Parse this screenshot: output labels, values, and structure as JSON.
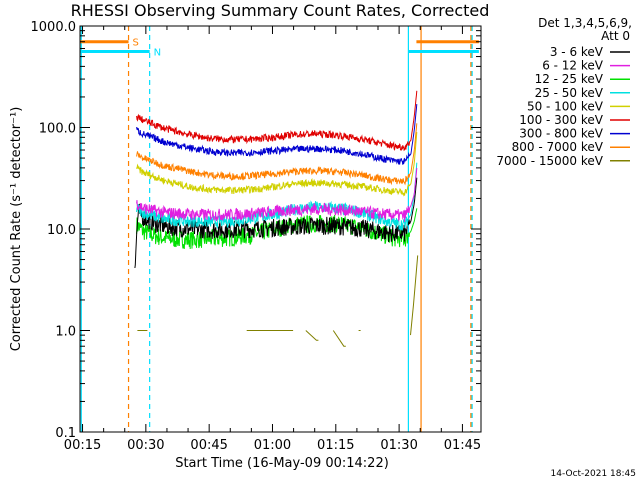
{
  "chart_data": {
    "type": "line",
    "title": "RHESSI Observing Summary Count Rates, Corrected",
    "xlabel": "Start Time (16-May-09 00:14:22)",
    "ylabel": "Corrected Count Rate (s⁻¹ detector⁻¹)",
    "x_unit": "minutes after 00:14:22",
    "xlim": [
      0,
      95
    ],
    "ylim": [
      0.1,
      1000
    ],
    "yscale": "log",
    "x_ticks": [
      {
        "t": 0.6,
        "label": "00:15"
      },
      {
        "t": 15.6,
        "label": "00:30"
      },
      {
        "t": 30.6,
        "label": "00:45"
      },
      {
        "t": 45.6,
        "label": "01:00"
      },
      {
        "t": 60.6,
        "label": "01:15"
      },
      {
        "t": 75.6,
        "label": "01:30"
      },
      {
        "t": 90.6,
        "label": "01:45"
      }
    ],
    "y_ticks": [
      {
        "v": 0.1,
        "label": "0.1"
      },
      {
        "v": 1,
        "label": "1.0"
      },
      {
        "v": 10,
        "label": "10.0"
      },
      {
        "v": 100,
        "label": "100.0"
      },
      {
        "v": 1000,
        "label": "1000.0"
      }
    ],
    "legend": {
      "header1": "Det 1,3,4,5,6,9,",
      "header2": "Att 0",
      "placement": "right"
    },
    "series": [
      {
        "name": "3 - 6 keV",
        "color": "#000000",
        "x": [
          13,
          13.8,
          15,
          18,
          21,
          26,
          31,
          36,
          41,
          46,
          51,
          56,
          61,
          66,
          70,
          74,
          77,
          78.4,
          79.2,
          79.8
        ],
        "y": [
          4.5,
          15,
          13,
          11.2,
          10.5,
          10,
          9.8,
          9.9,
          10,
          10.3,
          10.6,
          10.8,
          10.7,
          10.2,
          9.6,
          9.0,
          9.0,
          12,
          18,
          32
        ]
      },
      {
        "name": "6 - 12 keV",
        "color": "#e020e0",
        "x": [
          13.4,
          15,
          20,
          26,
          31,
          36,
          41,
          46,
          51,
          56,
          61,
          66,
          70,
          74,
          77,
          78.4,
          79.2,
          79.8
        ],
        "y": [
          18,
          16,
          14.5,
          14,
          13.8,
          13.9,
          14.2,
          14.8,
          15.5,
          15.8,
          15.5,
          15,
          14.2,
          13.8,
          13.5,
          17,
          22,
          40
        ]
      },
      {
        "name": "12 - 25 keV",
        "color": "#00e000",
        "x": [
          13.4,
          15,
          18,
          21,
          26,
          31,
          36,
          41,
          46,
          51,
          56,
          61,
          66,
          70,
          74,
          77,
          78.4,
          79.2,
          79.8
        ],
        "y": [
          11,
          9.5,
          8.5,
          8,
          7.8,
          8,
          8.2,
          8.8,
          10,
          11,
          11.3,
          11.2,
          10.4,
          9.3,
          8.2,
          8.0,
          9.5,
          12,
          16
        ]
      },
      {
        "name": "25 - 50 keV",
        "color": "#00e0e0",
        "x": [
          13.4,
          15,
          20,
          26,
          31,
          36,
          41,
          46,
          51,
          56,
          61,
          66,
          70,
          74,
          77,
          78.4,
          79.2,
          79.8
        ],
        "y": [
          16,
          14.5,
          12.5,
          12,
          11.8,
          12,
          12.8,
          14,
          15.6,
          16.5,
          16,
          14.8,
          13,
          11.5,
          11,
          14,
          22,
          45
        ]
      },
      {
        "name": "50 - 100 keV",
        "color": "#d0d000",
        "x": [
          13.4,
          15,
          20,
          26,
          31,
          36,
          41,
          46,
          51,
          56,
          61,
          66,
          70,
          74,
          77,
          78.4,
          79.2,
          79.8
        ],
        "y": [
          40,
          36,
          30,
          26,
          24.5,
          24,
          24.5,
          26,
          28,
          28.5,
          27.8,
          26.5,
          25,
          23.5,
          23,
          28,
          45,
          90
        ]
      },
      {
        "name": "100 - 300 keV",
        "color": "#e00000",
        "x": [
          13.4,
          15,
          20,
          26,
          31,
          36,
          41,
          46,
          51,
          56,
          61,
          66,
          70,
          74,
          77,
          78.4,
          79.2,
          79.8
        ],
        "y": [
          128,
          118,
          98,
          85,
          78,
          76,
          77,
          80,
          85,
          87,
          84,
          78,
          72,
          66,
          64,
          75,
          130,
          230
        ]
      },
      {
        "name": "300 - 800 keV",
        "color": "#0000d0",
        "x": [
          13.4,
          15,
          20,
          26,
          31,
          36,
          41,
          46,
          51,
          56,
          61,
          66,
          70,
          74,
          77,
          78.4,
          79.2,
          79.8
        ],
        "y": [
          95,
          86,
          72,
          63,
          58,
          56,
          57,
          59,
          61,
          62,
          60,
          56,
          51,
          47,
          46,
          55,
          95,
          170
        ]
      },
      {
        "name": "800 - 7000 keV",
        "color": "#ff8000",
        "x": [
          13.4,
          15,
          20,
          26,
          31,
          36,
          41,
          46,
          51,
          56,
          61,
          66,
          70,
          74,
          77,
          78.4,
          79.2,
          79.8
        ],
        "y": [
          55,
          50,
          42,
          37,
          34,
          33,
          33.5,
          35,
          37,
          37.5,
          36.5,
          34.5,
          32,
          30,
          29.5,
          36,
          60,
          110
        ]
      },
      {
        "name": "7000 - 15000 keV",
        "color": "#808000",
        "x": [
          13.6,
          15.5,
          39.5,
          41.5,
          44.5,
          47,
          50,
          53.5,
          56,
          60,
          62.5,
          66,
          78.3,
          79.0,
          79.6,
          80.0
        ],
        "y": [
          1,
          1,
          1,
          1,
          1,
          1,
          1,
          1,
          0.8,
          1,
          0.7,
          1,
          0.9,
          1.8,
          3.5,
          5.5
        ]
      }
    ],
    "annotations": [
      {
        "label": "S",
        "color": "#ff8000",
        "x_start": 0,
        "x_end": 11.5,
        "level": 700,
        "style": "bar"
      },
      {
        "label": "N",
        "color": "#00e0ff",
        "x_start": 0,
        "x_end": 16.5,
        "level": 560,
        "style": "bar"
      },
      {
        "label": "",
        "color": "#ff8000",
        "x_start": 79.7,
        "x_end": 94.5,
        "level": 700,
        "style": "bar"
      },
      {
        "label": "",
        "color": "#00e0ff",
        "x_start": 77.8,
        "x_end": 94.5,
        "level": 560,
        "style": "bar"
      }
    ],
    "vertical_lines": [
      {
        "t": 0.3,
        "color": "#00e0ff",
        "style": "solid"
      },
      {
        "t": 11.5,
        "color": "#ff8000",
        "style": "dashed"
      },
      {
        "t": 16.5,
        "color": "#00e0ff",
        "style": "dashed"
      },
      {
        "t": 77.8,
        "color": "#00e0ff",
        "style": "solid"
      },
      {
        "t": 80.8,
        "color": "#ff8000",
        "style": "solid"
      },
      {
        "t": 92.6,
        "color": "#ff8000",
        "style": "dashed"
      },
      {
        "t": 92.9,
        "color": "#00e0ff",
        "style": "dashed"
      }
    ]
  },
  "footer": {
    "date_stamp": "14-Oct-2021 18:45"
  }
}
